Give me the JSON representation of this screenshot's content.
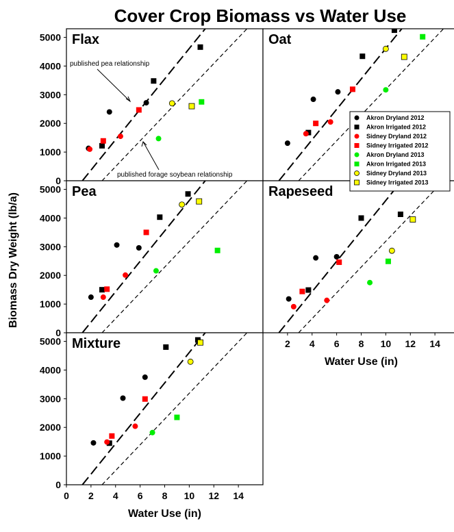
{
  "chart_data": {
    "type": "scatter",
    "title": "Cover Crop Biomass vs Water Use",
    "ylabel": "Biomass Dry Weight (lb/a)",
    "xlabel": "Water Use (in)",
    "xlim": [
      0,
      16
    ],
    "ylim": [
      0,
      5300
    ],
    "x_ticks": [
      0,
      2,
      4,
      6,
      8,
      10,
      12,
      14
    ],
    "y_ticks": [
      0,
      1000,
      2000,
      3000,
      4000,
      5000
    ],
    "legend_position": "inside Oat panel, right",
    "legend": [
      {
        "name": "Akron Dryland 2012",
        "marker": "circle",
        "color": "#000000"
      },
      {
        "name": "Akron Irrigated 2012",
        "marker": "square",
        "color": "#000000"
      },
      {
        "name": "Sidney Dryland 2012",
        "marker": "circle",
        "color": "#ff0000"
      },
      {
        "name": "Sidney Irrigated 2012",
        "marker": "square",
        "color": "#ff0000"
      },
      {
        "name": "Akron Dryland 2013",
        "marker": "circle",
        "color": "#00ee00"
      },
      {
        "name": "Akron Irrigated 2013",
        "marker": "square",
        "color": "#00ee00"
      },
      {
        "name": "Sidney Dryland 2013",
        "marker": "circle",
        "color": "#ffff00"
      },
      {
        "name": "Sidney Irrigated 2013",
        "marker": "square",
        "color": "#ffff00"
      }
    ],
    "reference_lines": [
      {
        "name": "published pea relationship",
        "style": "long-dash",
        "points": [
          [
            1.3,
            0
          ],
          [
            11.3,
            5300
          ]
        ]
      },
      {
        "name": "published forage soybean relationship",
        "style": "short-dash",
        "points": [
          [
            2.9,
            0
          ],
          [
            14.7,
            5300
          ]
        ]
      }
    ],
    "annotations": [
      "published pea relationship",
      "published forage soybean relationship"
    ],
    "panels": [
      {
        "label": "Flax",
        "points": [
          {
            "x": 1.8,
            "y": 1130,
            "series": 0
          },
          {
            "x": 3.5,
            "y": 2400,
            "series": 0
          },
          {
            "x": 6.5,
            "y": 2720,
            "series": 0
          },
          {
            "x": 2.9,
            "y": 1220,
            "series": 1
          },
          {
            "x": 7.1,
            "y": 3480,
            "series": 1
          },
          {
            "x": 10.9,
            "y": 4660,
            "series": 1
          },
          {
            "x": 1.9,
            "y": 1100,
            "series": 2
          },
          {
            "x": 4.4,
            "y": 1550,
            "series": 2
          },
          {
            "x": 3.0,
            "y": 1390,
            "series": 3
          },
          {
            "x": 5.9,
            "y": 2470,
            "series": 3
          },
          {
            "x": 7.5,
            "y": 1470,
            "series": 4
          },
          {
            "x": 11.0,
            "y": 2750,
            "series": 5
          },
          {
            "x": 8.6,
            "y": 2700,
            "series": 6
          },
          {
            "x": 10.2,
            "y": 2600,
            "series": 7
          }
        ]
      },
      {
        "label": "Oat",
        "points": [
          {
            "x": 2.0,
            "y": 1310,
            "series": 0
          },
          {
            "x": 4.1,
            "y": 2840,
            "series": 0
          },
          {
            "x": 6.1,
            "y": 3100,
            "series": 0
          },
          {
            "x": 3.7,
            "y": 1680,
            "series": 1
          },
          {
            "x": 8.1,
            "y": 4340,
            "series": 1
          },
          {
            "x": 10.7,
            "y": 5250,
            "series": 1
          },
          {
            "x": 3.5,
            "y": 1640,
            "series": 2
          },
          {
            "x": 5.5,
            "y": 2050,
            "series": 2
          },
          {
            "x": 4.3,
            "y": 2000,
            "series": 3
          },
          {
            "x": 7.3,
            "y": 3190,
            "series": 3
          },
          {
            "x": 10.0,
            "y": 3170,
            "series": 4
          },
          {
            "x": 13.0,
            "y": 5020,
            "series": 5
          },
          {
            "x": 10.0,
            "y": 4600,
            "series": 6
          },
          {
            "x": 11.5,
            "y": 4320,
            "series": 7
          }
        ]
      },
      {
        "label": "Pea",
        "points": [
          {
            "x": 2.0,
            "y": 1240,
            "series": 0
          },
          {
            "x": 4.1,
            "y": 3060,
            "series": 0
          },
          {
            "x": 5.9,
            "y": 2960,
            "series": 0
          },
          {
            "x": 2.9,
            "y": 1500,
            "series": 1
          },
          {
            "x": 7.6,
            "y": 4030,
            "series": 1
          },
          {
            "x": 9.9,
            "y": 4840,
            "series": 1
          },
          {
            "x": 3.0,
            "y": 1240,
            "series": 2
          },
          {
            "x": 4.8,
            "y": 2010,
            "series": 2
          },
          {
            "x": 3.3,
            "y": 1520,
            "series": 3
          },
          {
            "x": 6.5,
            "y": 3500,
            "series": 3
          },
          {
            "x": 7.3,
            "y": 2160,
            "series": 4
          },
          {
            "x": 12.3,
            "y": 2870,
            "series": 5
          },
          {
            "x": 9.4,
            "y": 4470,
            "series": 6
          },
          {
            "x": 10.8,
            "y": 4580,
            "series": 7
          }
        ]
      },
      {
        "label": "Rapeseed",
        "points": [
          {
            "x": 2.1,
            "y": 1180,
            "series": 0
          },
          {
            "x": 4.3,
            "y": 2610,
            "series": 0
          },
          {
            "x": 6.0,
            "y": 2650,
            "series": 0
          },
          {
            "x": 3.7,
            "y": 1490,
            "series": 1
          },
          {
            "x": 8.0,
            "y": 4000,
            "series": 1
          },
          {
            "x": 11.2,
            "y": 4130,
            "series": 1
          },
          {
            "x": 2.5,
            "y": 910,
            "series": 2
          },
          {
            "x": 5.2,
            "y": 1130,
            "series": 2
          },
          {
            "x": 3.2,
            "y": 1440,
            "series": 3
          },
          {
            "x": 6.2,
            "y": 2460,
            "series": 3
          },
          {
            "x": 8.7,
            "y": 1750,
            "series": 4
          },
          {
            "x": 10.2,
            "y": 2490,
            "series": 5
          },
          {
            "x": 10.5,
            "y": 2860,
            "series": 6
          },
          {
            "x": 12.2,
            "y": 3950,
            "series": 7
          }
        ]
      },
      {
        "label": "Mixture",
        "points": [
          {
            "x": 2.2,
            "y": 1460,
            "series": 0
          },
          {
            "x": 4.6,
            "y": 3020,
            "series": 0
          },
          {
            "x": 6.4,
            "y": 3750,
            "series": 0
          },
          {
            "x": 3.5,
            "y": 1450,
            "series": 1
          },
          {
            "x": 8.1,
            "y": 4800,
            "series": 1
          },
          {
            "x": 10.7,
            "y": 5050,
            "series": 1
          },
          {
            "x": 3.3,
            "y": 1490,
            "series": 2
          },
          {
            "x": 5.6,
            "y": 2040,
            "series": 2
          },
          {
            "x": 3.7,
            "y": 1700,
            "series": 3
          },
          {
            "x": 6.4,
            "y": 2990,
            "series": 3
          },
          {
            "x": 7.0,
            "y": 1820,
            "series": 4
          },
          {
            "x": 9.0,
            "y": 2350,
            "series": 5
          },
          {
            "x": 10.1,
            "y": 4290,
            "series": 6
          },
          {
            "x": 10.9,
            "y": 4960,
            "series": 7
          }
        ]
      }
    ]
  }
}
